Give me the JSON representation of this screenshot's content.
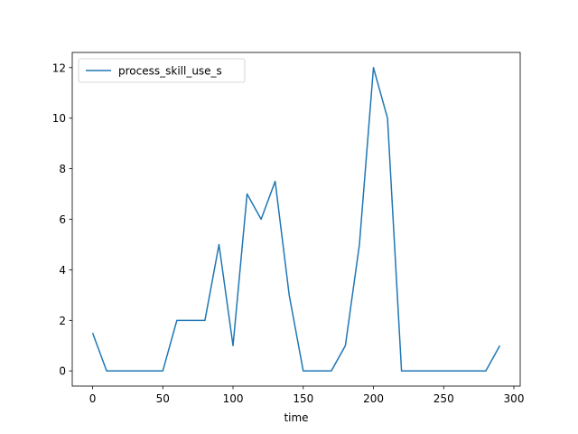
{
  "chart_data": {
    "type": "line",
    "xlabel": "time",
    "ylabel": "",
    "xlim": [
      -14.5,
      304.5
    ],
    "ylim": [
      -0.6,
      12.6
    ],
    "xticks": [
      0,
      50,
      100,
      150,
      200,
      250,
      300
    ],
    "yticks": [
      0,
      2,
      4,
      6,
      8,
      10,
      12
    ],
    "grid": false,
    "legend_position": "top-left",
    "x": [
      0,
      10,
      20,
      30,
      40,
      50,
      60,
      70,
      80,
      90,
      100,
      110,
      120,
      130,
      140,
      150,
      160,
      170,
      180,
      190,
      200,
      210,
      220,
      230,
      240,
      250,
      260,
      270,
      280,
      290
    ],
    "series": [
      {
        "name": "process_skill_use_s",
        "color": "#1f77b4",
        "values": [
          1.5,
          0,
          0,
          0,
          0,
          0,
          2,
          2,
          2,
          5,
          1,
          7,
          6,
          7.5,
          3,
          0,
          0,
          0,
          1,
          5,
          12,
          10,
          0,
          0,
          0,
          0,
          0,
          0,
          0,
          1
        ]
      }
    ]
  }
}
